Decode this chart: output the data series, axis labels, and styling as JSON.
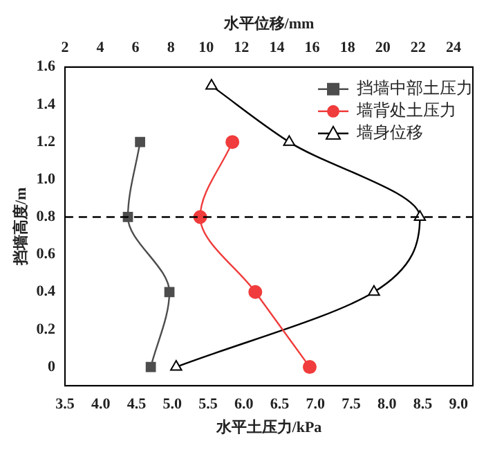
{
  "chart_data": {
    "type": "line",
    "xlabel": "水平土压力/kPa",
    "x2label": "水平位移/mm",
    "ylabel": "挡墙高度/m",
    "xlim": [
      3.5,
      9.2
    ],
    "xticks": [
      3.5,
      {
        "value": 4,
        "label": "4.0"
      },
      4.5,
      {
        "value": 5,
        "label": "5.0"
      },
      5.5,
      {
        "value": 6,
        "label": "6.0"
      },
      6.5,
      {
        "value": 7,
        "label": "7.0"
      },
      7.5,
      {
        "value": 8,
        "label": "8.0"
      },
      8.5,
      {
        "value": 9,
        "label": "9.0"
      }
    ],
    "x2lim": [
      2,
      25.1
    ],
    "x2ticks": [
      2,
      4,
      6,
      8,
      10,
      12,
      14,
      16,
      18,
      20,
      22,
      24
    ],
    "ylim": [
      -0.1,
      1.6
    ],
    "yticks": [
      0,
      0.2,
      0.4,
      0.6,
      0.8,
      {
        "value": 1,
        "label": "1.0"
      },
      1.2,
      1.4,
      1.6
    ],
    "series": [
      {
        "name": "挡墙中部土压力",
        "color": "#4d4d4d",
        "marker": "square",
        "x": [
          4.7,
          4.96,
          4.38,
          4.55
        ],
        "values": [
          0,
          0.4,
          0.8,
          1.2
        ]
      },
      {
        "name": "墙背处土压力",
        "color": "#f03c3c",
        "marker": "circle",
        "x": [
          6.92,
          6.16,
          5.39,
          5.84
        ],
        "values": [
          0,
          0.4,
          0.8,
          1.2
        ]
      },
      {
        "name": "墙身位移",
        "color": "#000000",
        "marker": "triangle",
        "axis": "x2",
        "x": [
          8.3,
          19.5,
          22.1,
          14.7,
          10.3
        ],
        "values": [
          0,
          0.4,
          0.8,
          1.2,
          1.5
        ]
      }
    ],
    "ref_lines": [
      {
        "axis": "y",
        "value": 0.8,
        "line_style": "dashed",
        "color": "#000000"
      }
    ],
    "grid": false,
    "legend": "top right"
  }
}
